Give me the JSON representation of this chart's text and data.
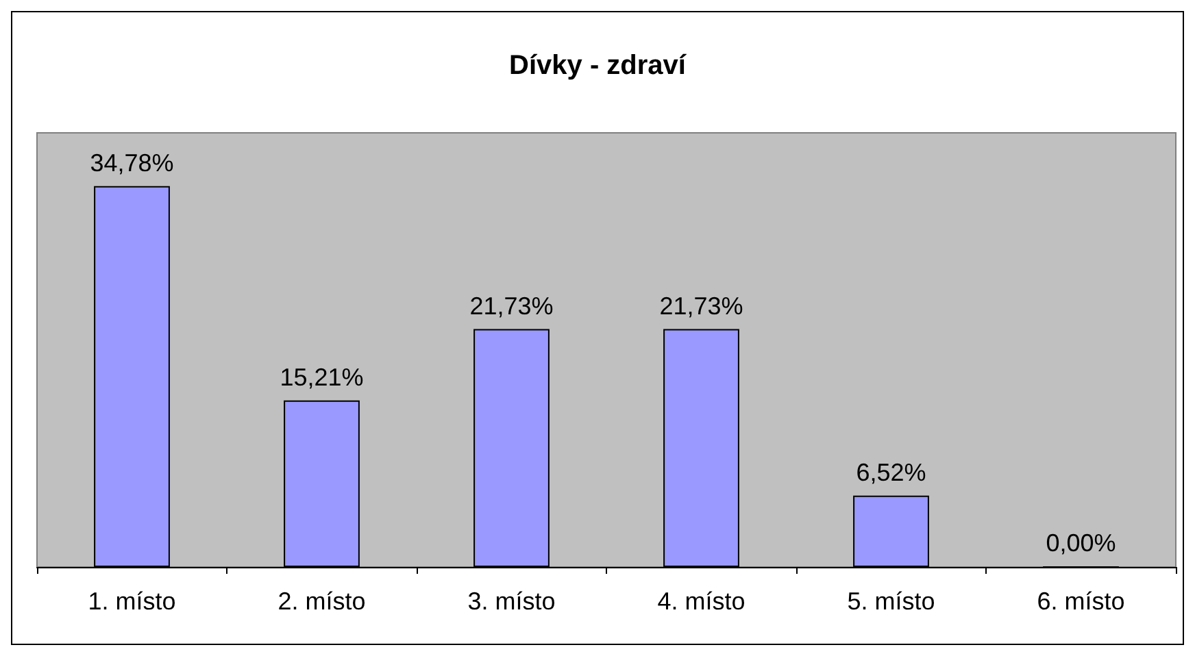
{
  "chart_data": {
    "type": "bar",
    "title": "Dívky - zdraví",
    "categories": [
      "1. místo",
      "2. místo",
      "3. místo",
      "4. místo",
      "5. místo",
      "6. místo"
    ],
    "values": [
      34.78,
      15.21,
      21.73,
      21.73,
      6.52,
      0
    ],
    "value_labels": [
      "34,78%",
      "15,21%",
      "21,73%",
      "21,73%",
      "6,52%",
      "0,00%"
    ],
    "color": "#9999ff"
  }
}
